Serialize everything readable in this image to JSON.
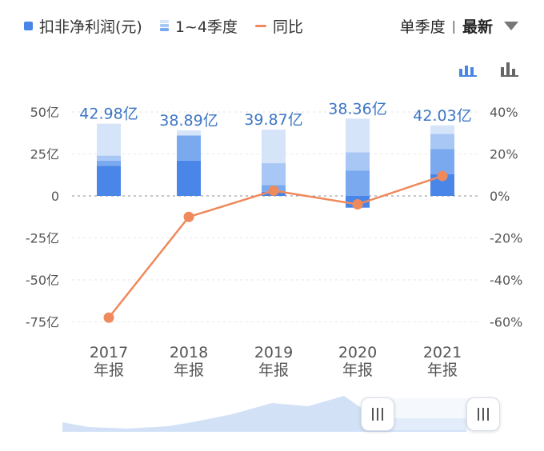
{
  "legend": {
    "net_profit": "扣非净利润(元)",
    "quarters": "1~4季度",
    "yoy": "同比"
  },
  "controls": {
    "period": "单季度",
    "separator": "|",
    "latest": "最新"
  },
  "icons": {
    "stacked": "stacked-bar-chart-icon",
    "simple": "bar-chart-icon",
    "dropdown": "caret-down-icon",
    "slider": "slider-grip-icon"
  },
  "colors": {
    "q1": "#4a86e8",
    "q2": "#7aa9f0",
    "q3": "#a9c7f5",
    "q4": "#d6e4fa",
    "line": "#ee8a5c",
    "total_text": "#3d76c5",
    "navigator": "#d3e1f7"
  },
  "chart_data": {
    "type": "bar",
    "categories": [
      "2017\n年报",
      "2018\n年报",
      "2019\n年报",
      "2020\n年报",
      "2021\n年报"
    ],
    "totals_label": [
      "42.98亿",
      "38.89亿",
      "39.87亿",
      "38.36亿",
      "42.03亿"
    ],
    "series": [
      {
        "name": "Q1",
        "values": [
          18,
          21,
          2.5,
          -7,
          13
        ]
      },
      {
        "name": "Q2",
        "values": [
          3,
          15,
          4,
          15,
          15
        ]
      },
      {
        "name": "Q3",
        "values": [
          3,
          0,
          13,
          11,
          9
        ]
      },
      {
        "name": "Q4",
        "values": [
          19,
          3,
          20,
          20,
          5
        ]
      }
    ],
    "line": {
      "name": "同比",
      "values": [
        -58,
        -10,
        2.5,
        -4,
        9.5
      ]
    },
    "y_left": {
      "min": -75,
      "max": 50,
      "ticks": [
        50,
        25,
        0,
        -25,
        -50,
        -75
      ],
      "tick_labels": [
        "50亿",
        "25亿",
        "0",
        "-25亿",
        "-50亿",
        "-75亿"
      ]
    },
    "y_right": {
      "min": -60,
      "max": 40,
      "ticks": [
        40,
        20,
        0,
        -20,
        -40,
        -60
      ],
      "tick_labels": [
        "40%",
        "20%",
        "0%",
        "-20%",
        "-40%",
        "-60%"
      ]
    },
    "grid": true
  }
}
